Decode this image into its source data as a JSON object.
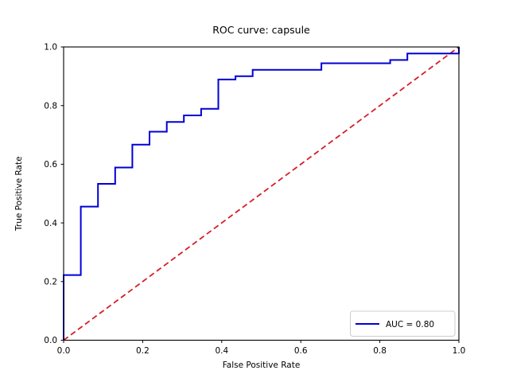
{
  "figure": {
    "background": "#ffffff",
    "axes_color": "#000000"
  },
  "chart_data": {
    "type": "line",
    "title": "ROC curve: capsule",
    "xlabel": "False Positive Rate",
    "ylabel": "True Positive Rate",
    "xlim": [
      0.0,
      1.0
    ],
    "ylim": [
      0.0,
      1.0
    ],
    "grid": false,
    "x_ticks": {
      "values": [
        0.0,
        0.2,
        0.4,
        0.6,
        0.8,
        1.0
      ],
      "labels": [
        "0.0",
        "0.2",
        "0.4",
        "0.6",
        "0.8",
        "1.0"
      ]
    },
    "y_ticks": {
      "values": [
        0.0,
        0.2,
        0.4,
        0.6,
        0.8,
        1.0
      ],
      "labels": [
        "0.0",
        "0.2",
        "0.4",
        "0.6",
        "0.8",
        "1.0"
      ]
    },
    "legend": {
      "position": "lower right",
      "entries": [
        {
          "label": "AUC = 0.80",
          "color": "#0000d6",
          "style": "solid"
        }
      ]
    },
    "auc": 0.8,
    "series": [
      {
        "name": "roc_curve",
        "kind": "step",
        "color": "#0000d6",
        "style": "solid",
        "points": [
          [
            0.0,
            0.0
          ],
          [
            0.0,
            0.2222
          ],
          [
            0.0435,
            0.2222
          ],
          [
            0.0435,
            0.4556
          ],
          [
            0.087,
            0.4556
          ],
          [
            0.087,
            0.5333
          ],
          [
            0.1304,
            0.5333
          ],
          [
            0.1304,
            0.5889
          ],
          [
            0.1739,
            0.5889
          ],
          [
            0.1739,
            0.6667
          ],
          [
            0.2174,
            0.6667
          ],
          [
            0.2174,
            0.7111
          ],
          [
            0.2609,
            0.7111
          ],
          [
            0.2609,
            0.7444
          ],
          [
            0.3043,
            0.7444
          ],
          [
            0.3043,
            0.7667
          ],
          [
            0.3478,
            0.7667
          ],
          [
            0.3478,
            0.7889
          ],
          [
            0.3913,
            0.7889
          ],
          [
            0.3913,
            0.8889
          ],
          [
            0.4348,
            0.8889
          ],
          [
            0.4348,
            0.9
          ],
          [
            0.4783,
            0.9
          ],
          [
            0.4783,
            0.9222
          ],
          [
            0.6522,
            0.9222
          ],
          [
            0.6522,
            0.9444
          ],
          [
            0.8261,
            0.9444
          ],
          [
            0.8261,
            0.9556
          ],
          [
            0.8696,
            0.9556
          ],
          [
            0.8696,
            0.9778
          ],
          [
            1.0,
            0.9778
          ],
          [
            1.0,
            1.0
          ]
        ]
      },
      {
        "name": "chance_diagonal",
        "kind": "line",
        "color": "#d61e28",
        "style": "dashed",
        "points": [
          [
            0.0,
            0.0
          ],
          [
            1.0,
            1.0
          ]
        ]
      }
    ]
  }
}
